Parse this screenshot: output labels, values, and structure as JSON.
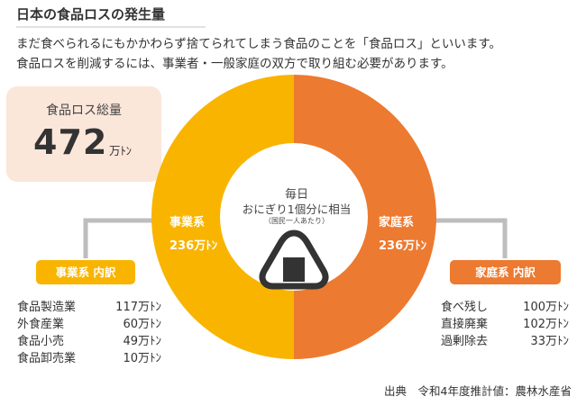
{
  "title": "日本の食品ロスの発生量",
  "intro": [
    "まだ食べられるにもかかわらず捨てられてしまう食品のことを「食品ロス」といいます。",
    "食品ロスを削減するには、事業者・一般家庭の双方で取り組む必要があります。"
  ],
  "total": {
    "label": "食品ロス総量",
    "value": "472",
    "unit": "万ﾄﾝ"
  },
  "center": {
    "line1": "毎日",
    "line2": "おにぎり1個分に相当",
    "line3": "（国民一人あたり）"
  },
  "colors": {
    "business": "#f9b400",
    "household": "#ec7a30",
    "total_bg": "#fbe6da",
    "connector": "#bdbdbd"
  },
  "icon": "onigiri-icon",
  "chart_data": {
    "type": "pie",
    "style": "donut",
    "total": 472,
    "unit": "万ﾄﾝ",
    "slices": [
      {
        "name": "事業系",
        "value": 236,
        "value_label": "236万ﾄﾝ",
        "color": "#f9b400"
      },
      {
        "name": "家庭系",
        "value": 236,
        "value_label": "236万ﾄﾝ",
        "color": "#ec7a30"
      }
    ],
    "breakdowns": [
      {
        "title": "事業系 内訳",
        "items": [
          {
            "name": "食品製造業",
            "value": 117,
            "label": "117万ﾄﾝ"
          },
          {
            "name": "外食産業",
            "value": 60,
            "label": "60万ﾄﾝ"
          },
          {
            "name": "食品小売",
            "value": 49,
            "label": "49万ﾄﾝ"
          },
          {
            "name": "食品卸売業",
            "value": 10,
            "label": "10万ﾄﾝ"
          }
        ]
      },
      {
        "title": "家庭系 内訳",
        "items": [
          {
            "name": "食べ残し",
            "value": 100,
            "label": "100万ﾄﾝ"
          },
          {
            "name": "直接廃棄",
            "value": 102,
            "label": "102万ﾄﾝ"
          },
          {
            "name": "過剰除去",
            "value": 33,
            "label": "33万ﾄﾝ"
          }
        ]
      }
    ]
  },
  "source": "出典　令和4年度推計値：農林水産省"
}
